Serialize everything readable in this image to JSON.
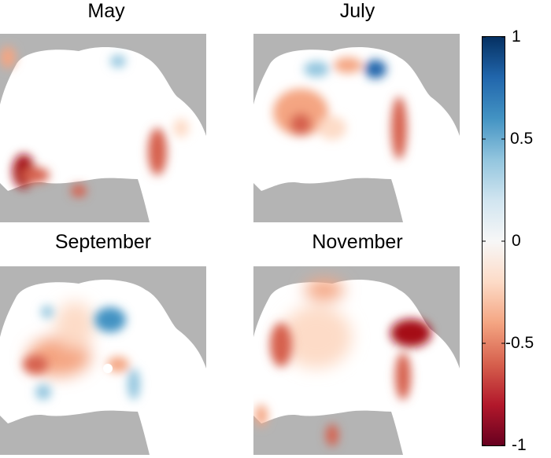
{
  "panels": [
    {
      "title": "May"
    },
    {
      "title": "July"
    },
    {
      "title": "September"
    },
    {
      "title": "November"
    }
  ],
  "colorbar": {
    "ticks": [
      "1",
      "0.5",
      "0",
      "-0.5",
      "-1"
    ],
    "tick_values": [
      1,
      0.5,
      0,
      -0.5,
      -1
    ],
    "colors": {
      "max": "#053061",
      "mid": "#f7f7f7",
      "min": "#67001f"
    }
  },
  "colors": {
    "land": "#b4b4b4",
    "ocean": "#ffffff",
    "pole_hole": "#ffffff"
  }
}
